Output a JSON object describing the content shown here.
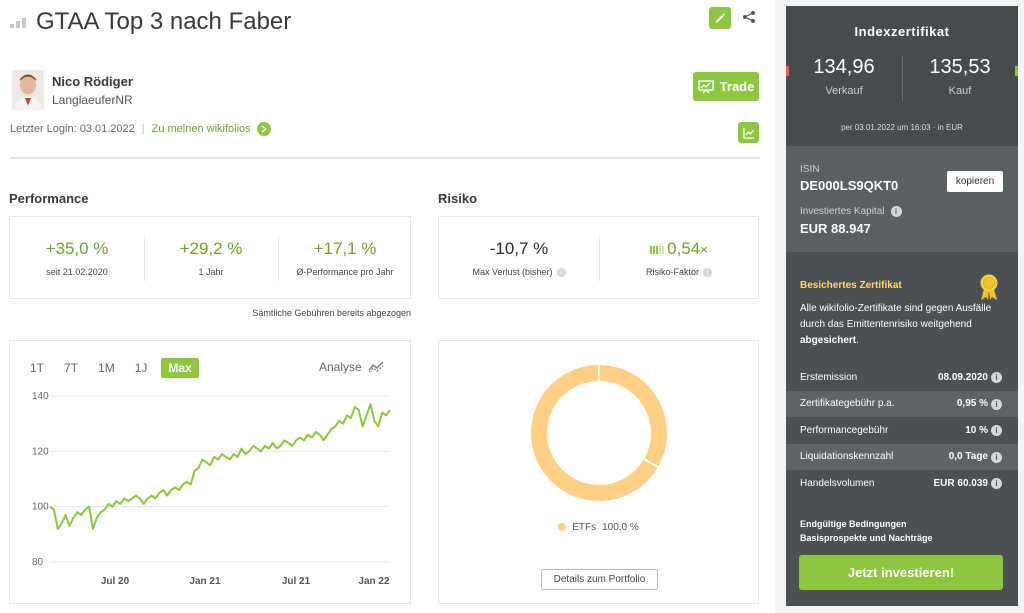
{
  "header": {
    "title": "GTAA Top 3 nach Faber",
    "edit_icon": "pencil-icon",
    "share_icon": "share-icon"
  },
  "trader": {
    "name": "Nico Rödiger",
    "handle": "LanglaeuferNR",
    "last_login": "Letzter Login: 03.01.2022",
    "separator": "|",
    "wikifolios_link": "Zu meinen wikifolios",
    "trade_label": "Trade"
  },
  "performance": {
    "heading": "Performance",
    "metrics": [
      {
        "value": "+35,0 %",
        "label": "seit 21.02.2020"
      },
      {
        "value": "+29,2 %",
        "label": "1 Jahr"
      },
      {
        "value": "+17,1 %",
        "label": "Ø-Performance pro Jahr"
      }
    ],
    "fees_note": "Sämtliche Gebühren bereits abgezogen"
  },
  "risk": {
    "heading": "Risiko",
    "metrics": [
      {
        "value": "-10,7 %",
        "label": "Max Verlust (bisher)"
      },
      {
        "value": "0,54",
        "suffix": "×",
        "label": "Risiko-Faktor"
      }
    ]
  },
  "chart_controls": {
    "ranges": [
      "1T",
      "7T",
      "1M",
      "1J",
      "Max"
    ],
    "active_range": "Max",
    "analyse_label": "Analyse"
  },
  "chart_data": {
    "type": "line",
    "x_ticks": [
      "Jul 20",
      "Jan 21",
      "Jul 21",
      "Jan 22"
    ],
    "y_ticks": [
      80,
      100,
      120,
      140
    ],
    "ylim": [
      80,
      140
    ],
    "xlabel": "",
    "ylabel": "",
    "grid": true,
    "series": [
      {
        "values": [
          100,
          99,
          92,
          94,
          97,
          93,
          96,
          98,
          97,
          99,
          100,
          92,
          96,
          98,
          99,
          101,
          100,
          102,
          101,
          103,
          102,
          103,
          104,
          103,
          101,
          103,
          104,
          103,
          105,
          106,
          104,
          106,
          107,
          106,
          108,
          109,
          108,
          113,
          114,
          117,
          116,
          115,
          118,
          117,
          119,
          118,
          117,
          119,
          118,
          121,
          119,
          120,
          122,
          121,
          120,
          122,
          121,
          123,
          121,
          122,
          124,
          123,
          122,
          124,
          125,
          124,
          126,
          125,
          127,
          126,
          124,
          126,
          128,
          129,
          131,
          130,
          133,
          132,
          136,
          135,
          129,
          133,
          137,
          131,
          129,
          134,
          133,
          135
        ]
      }
    ]
  },
  "portfolio_chart": {
    "type": "pie",
    "categories": [
      "ETFs"
    ],
    "values": [
      100.0
    ],
    "legend": [
      {
        "label": "ETFs",
        "value": "100,0 %"
      }
    ],
    "colors": [
      "#ffcf86"
    ],
    "button_label": "Details zum Portfolio"
  },
  "certificate": {
    "title": "Indexzertifikat",
    "sell_price": "134,96",
    "sell_label": "Verkauf",
    "buy_price": "135,53",
    "buy_label": "Kauf",
    "price_timestamp": "per 03.01.2022 um 16:03 · in EUR",
    "isin_label": "ISIN",
    "isin": "DE000LS9QKT0",
    "copy_label": "kopieren",
    "capital_label": "Investiertes Kapital",
    "capital_value": "EUR 88.947",
    "secured_title": "Besichertes Zertifikat",
    "secured_text_1": "Alle wikifolio-Zertifikate sind gegen Ausfälle durch das Emittentenrisiko weitgehend ",
    "secured_text_bold": "abgesichert",
    "secured_text_2": ".",
    "facts": [
      {
        "key": "Erstemission",
        "value": "08.09.2020"
      },
      {
        "key": "Zertifikategebühr p.a.",
        "value": "0,95 %"
      },
      {
        "key": "Performancegebühr",
        "value": "10 %"
      },
      {
        "key": "Liquidationskennzahl",
        "value": "0,0 Tage"
      },
      {
        "key": "Handelsvolumen",
        "value": "EUR 60.039"
      }
    ],
    "docs_link_1": "Endgültige Bedingungen",
    "docs_link_2": "Basisprospekte und Nachträge",
    "invest_label": "Jetzt investieren!"
  },
  "colors": {
    "accent": "#8dc63f",
    "panel_dark": "#4b5052",
    "donut": "#ffcf86",
    "sell_marker": "#e35d5d",
    "buy_marker": "#8dc63f"
  }
}
